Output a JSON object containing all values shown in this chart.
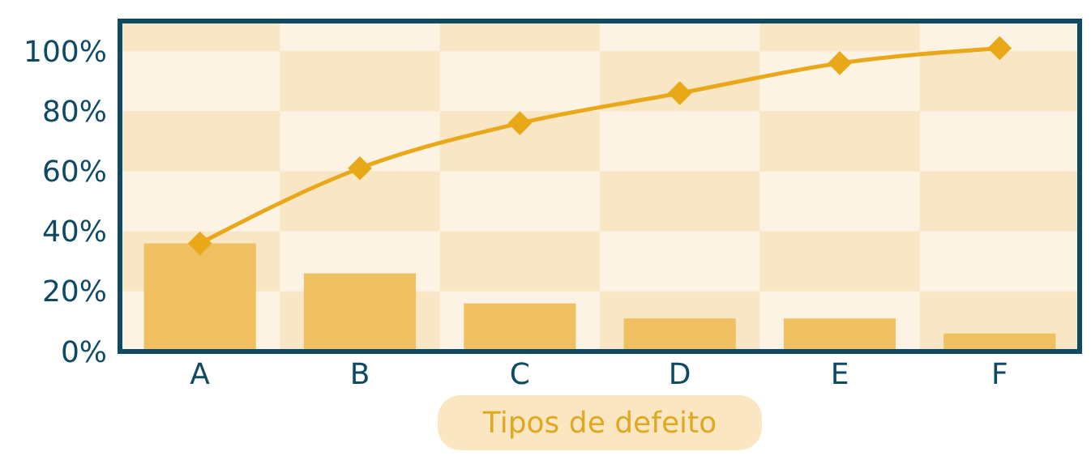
{
  "chart_data": {
    "type": "bar",
    "xlabel": "Tipos de defeito",
    "categories": [
      "A",
      "B",
      "C",
      "D",
      "E",
      "F"
    ],
    "series": [
      {
        "color": "#f0c060",
        "values": [
          36,
          26,
          16,
          11,
          11,
          6
        ]
      },
      {
        "type": "line",
        "color": "#e8a818",
        "values": [
          36,
          61,
          76,
          86,
          96,
          101
        ]
      }
    ],
    "ylim": [
      0,
      110
    ],
    "yticks": [
      {
        "value": 0,
        "label": "0%"
      },
      {
        "value": 20,
        "label": "20%"
      },
      {
        "value": 40,
        "label": "40%"
      },
      {
        "value": 60,
        "label": "60%"
      },
      {
        "value": 80,
        "label": "80%"
      },
      {
        "value": 100,
        "label": "100%"
      }
    ],
    "marker": "diamond",
    "grid": false
  }
}
